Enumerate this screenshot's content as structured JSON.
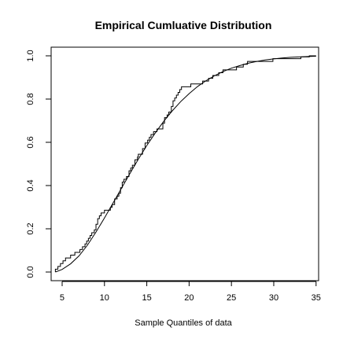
{
  "chart_data": {
    "type": "line",
    "title": "Empirical Cumluative Distribution",
    "xlabel": "Sample Quantiles of data",
    "ylabel": "",
    "xlim": [
      3.7,
      35.3
    ],
    "ylim": [
      -0.04,
      1.04
    ],
    "x_ticks": [
      5,
      10,
      15,
      20,
      25,
      30,
      35
    ],
    "x_tick_labels": [
      "5",
      "10",
      "15",
      "20",
      "25",
      "30",
      "35"
    ],
    "y_ticks": [
      0.0,
      0.2,
      0.4,
      0.6,
      0.8,
      1.0
    ],
    "y_tick_labels": [
      "0.0",
      "0.2",
      "0.4",
      "0.6",
      "0.8",
      "1.0"
    ],
    "grid": false,
    "series": [
      {
        "kind": "step",
        "x": [
          4.2,
          4.5,
          4.8,
          5.1,
          5.4,
          6.0,
          6.5,
          7.1,
          7.4,
          7.7,
          7.9,
          8.1,
          8.3,
          8.5,
          8.8,
          9.0,
          9.2,
          9.4,
          9.6,
          10.0,
          10.7,
          10.9,
          11.2,
          11.5,
          11.7,
          11.9,
          12.1,
          12.3,
          12.6,
          12.9,
          13.1,
          13.3,
          13.6,
          13.9,
          14.0,
          14.5,
          14.8,
          15.1,
          15.3,
          15.5,
          15.8,
          16.2,
          16.9,
          17.1,
          17.4,
          17.6,
          17.9,
          18.1,
          18.3,
          18.5,
          18.7,
          18.9,
          19.1,
          19.5,
          20.2,
          20.9,
          21.6,
          22.3,
          22.8,
          23.5,
          24.0,
          24.7,
          25.6,
          26.4,
          26.9,
          27.6,
          28.6,
          29.9,
          31.2,
          32.1,
          33.2,
          34.2
        ],
        "y": [
          0.013,
          0.026,
          0.039,
          0.052,
          0.065,
          0.078,
          0.091,
          0.104,
          0.117,
          0.13,
          0.143,
          0.156,
          0.169,
          0.182,
          0.195,
          0.221,
          0.247,
          0.26,
          0.273,
          0.286,
          0.299,
          0.312,
          0.338,
          0.351,
          0.364,
          0.39,
          0.416,
          0.429,
          0.442,
          0.468,
          0.481,
          0.494,
          0.519,
          0.532,
          0.545,
          0.571,
          0.597,
          0.61,
          0.623,
          0.636,
          0.649,
          0.662,
          0.688,
          0.714,
          0.727,
          0.74,
          0.766,
          0.792,
          0.805,
          0.818,
          0.831,
          0.844,
          0.857,
          0.857,
          0.87,
          0.87,
          0.883,
          0.896,
          0.909,
          0.922,
          0.935,
          0.935,
          0.948,
          0.961,
          0.974,
          0.974,
          0.974,
          0.987,
          0.987,
          0.987,
          0.995,
          1.0
        ]
      },
      {
        "kind": "smooth",
        "x": [
          4.2,
          5,
          6,
          7,
          8,
          9,
          10,
          11,
          12,
          13,
          14,
          15,
          16,
          17,
          18,
          19,
          20,
          21,
          22,
          23,
          24,
          25,
          26,
          27,
          28,
          29,
          30,
          31,
          32,
          33,
          34,
          35
        ],
        "y": [
          0.0,
          0.012,
          0.038,
          0.075,
          0.125,
          0.185,
          0.25,
          0.318,
          0.387,
          0.455,
          0.522,
          0.585,
          0.643,
          0.697,
          0.745,
          0.788,
          0.825,
          0.858,
          0.885,
          0.908,
          0.927,
          0.943,
          0.955,
          0.966,
          0.974,
          0.981,
          0.986,
          0.99,
          0.993,
          0.995,
          0.997,
          0.998
        ]
      }
    ]
  }
}
